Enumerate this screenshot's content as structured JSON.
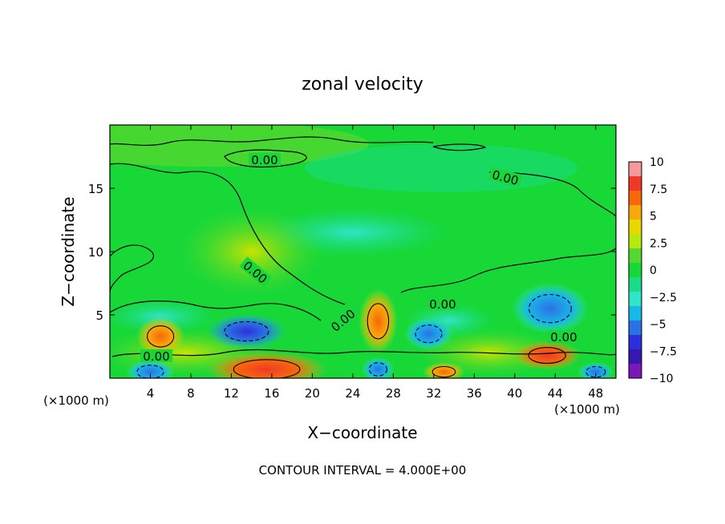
{
  "chart_data": {
    "type": "heatmap",
    "title": "zonal velocity",
    "xlabel": "X−coordinate",
    "ylabel": "Z−coordinate",
    "x_unit_left": "(×1000 m)",
    "x_unit_right": "(×1000 m)",
    "xlim": [
      0,
      50
    ],
    "ylim": [
      0,
      20
    ],
    "x_ticks": [
      4,
      8,
      12,
      16,
      20,
      24,
      28,
      32,
      36,
      40,
      44,
      48
    ],
    "y_ticks": [
      5,
      10,
      15
    ],
    "colorbar": {
      "ticks": [
        "10",
        "7.5",
        "5",
        "2.5",
        "0",
        "−2.5",
        "−5",
        "−7.5",
        "−10"
      ],
      "range": [
        -10,
        10
      ],
      "colors": [
        "#f49a9a",
        "#ee3a2a",
        "#f7660c",
        "#f8a80a",
        "#e8d800",
        "#b8e810",
        "#52d830",
        "#18d838",
        "#18dc88",
        "#30e4c8",
        "#18b8e8",
        "#2b72e4",
        "#2c30dc",
        "#3618b0",
        "#7a18b8"
      ]
    },
    "contour_interval_label": "CONTOUR INTERVAL =  4.000E+00",
    "contour_labels": [
      "0.00",
      "0.00",
      "0.00",
      "0.00",
      "0.00",
      "0.00",
      "0.00"
    ],
    "features": [
      {
        "x": 13.5,
        "z": 3.7,
        "value": -6
      },
      {
        "x": 43.5,
        "z": 5.5,
        "value": -5
      },
      {
        "x": 31.5,
        "z": 3.5,
        "value": -3.5
      },
      {
        "x": 15.5,
        "z": 0.7,
        "value": 7
      },
      {
        "x": 43.2,
        "z": 1.8,
        "value": 7
      },
      {
        "x": 26.5,
        "z": 4.5,
        "value": 4.5
      },
      {
        "x": 5.0,
        "z": 3.3,
        "value": 4
      },
      {
        "x": 4.0,
        "z": 0.5,
        "value": -5
      },
      {
        "x": 26.5,
        "z": 0.7,
        "value": -4
      },
      {
        "x": 33.0,
        "z": 0.5,
        "value": 6
      },
      {
        "x": 48.0,
        "z": 0.5,
        "value": -5
      },
      {
        "x": 14.0,
        "z": 10.0,
        "value": 1.2
      }
    ]
  }
}
